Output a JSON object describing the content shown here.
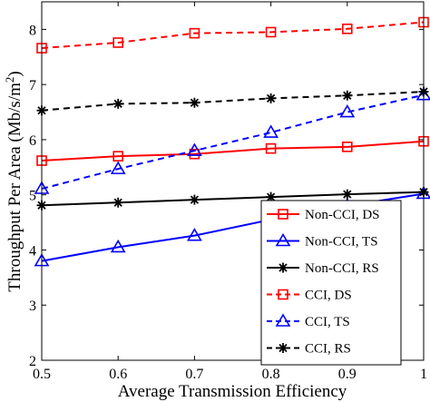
{
  "chart_data": {
    "type": "line",
    "title": "",
    "xlabel": "Average Transmission Efficiency",
    "ylabel": "Throughput Per Area (Mb/s/m",
    "ylabel_superscript": "2",
    "ylabel_suffix": ")",
    "xlim": [
      0.5,
      1.0
    ],
    "ylim": [
      2,
      8.5
    ],
    "xticks": [
      "0.5",
      "0.6",
      "0.7",
      "0.8",
      "0.9",
      "1"
    ],
    "yticks": [
      "2",
      "3",
      "4",
      "5",
      "6",
      "7",
      "8"
    ],
    "x": [
      0.5,
      0.6,
      0.7,
      0.8,
      0.9,
      1.0
    ],
    "grid": false,
    "legend_position": "bottom-right",
    "series": [
      {
        "name": "Non-CCI, DS",
        "color": "#ff0000",
        "dash": "solid",
        "marker": "square",
        "values": [
          5.62,
          5.7,
          5.74,
          5.84,
          5.87,
          5.97
        ]
      },
      {
        "name": "Non-CCI, TS",
        "color": "#0000ff",
        "dash": "solid",
        "marker": "triangle",
        "values": [
          3.8,
          4.05,
          4.26,
          4.55,
          4.8,
          5.02
        ]
      },
      {
        "name": "Non-CCI, RS",
        "color": "#000000",
        "dash": "solid",
        "marker": "asterisk",
        "values": [
          4.81,
          4.86,
          4.91,
          4.96,
          5.01,
          5.05
        ]
      },
      {
        "name": "CCI, DS",
        "color": "#ff0000",
        "dash": "dashed",
        "marker": "square",
        "values": [
          7.66,
          7.76,
          7.93,
          7.95,
          8.01,
          8.13
        ]
      },
      {
        "name": "CCI, TS",
        "color": "#0000ff",
        "dash": "dashed",
        "marker": "triangle",
        "values": [
          5.11,
          5.47,
          5.8,
          6.13,
          6.5,
          6.81
        ]
      },
      {
        "name": "CCI, RS",
        "color": "#000000",
        "dash": "dashed",
        "marker": "asterisk",
        "values": [
          6.53,
          6.65,
          6.67,
          6.75,
          6.8,
          6.87
        ]
      }
    ]
  }
}
